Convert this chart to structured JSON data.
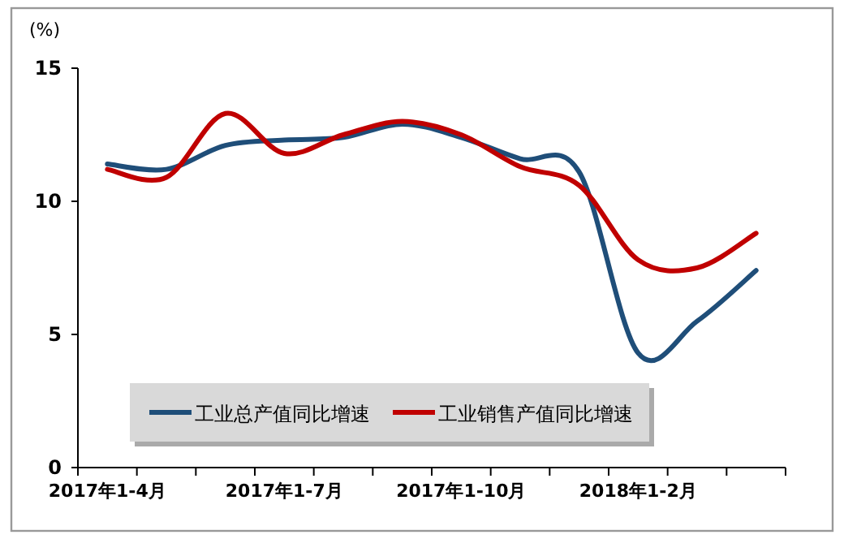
{
  "chart_data": {
    "type": "line",
    "ylabel": "(%)",
    "categories": [
      "2017年1-4月",
      null,
      null,
      "2017年1-7月",
      null,
      null,
      "2017年1-10月",
      null,
      null,
      "2018年1-2月",
      null,
      null
    ],
    "ylim": [
      0,
      15
    ],
    "yticks": [
      0,
      5,
      10,
      15
    ],
    "grid": false,
    "legend": "bottom",
    "marker": "none",
    "line_style": "solid",
    "series": [
      {
        "name": "工业总产值同比增速",
        "color": "#1f4e79",
        "values": [
          11.4,
          11.2,
          12.1,
          12.3,
          12.4,
          12.9,
          12.4,
          11.6,
          11.1,
          4.3,
          5.5,
          7.4
        ]
      },
      {
        "name": "工业销售产值同比增速",
        "color": "#c00000",
        "values": [
          11.2,
          10.9,
          13.3,
          11.8,
          12.5,
          13.0,
          12.5,
          11.3,
          10.6,
          7.8,
          7.5,
          8.8
        ]
      }
    ]
  }
}
